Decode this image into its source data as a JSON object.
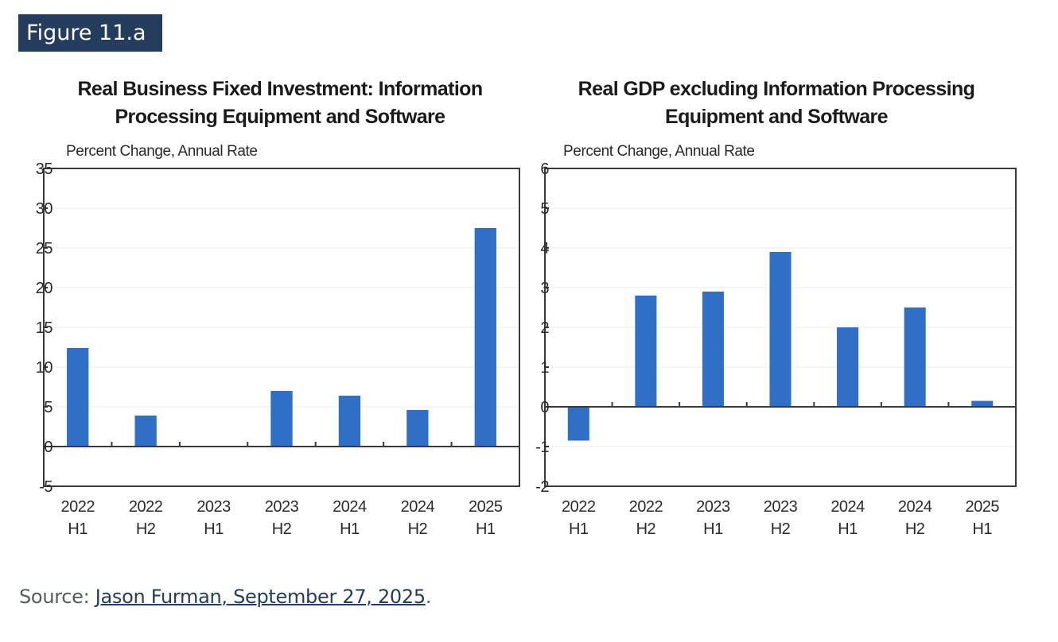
{
  "figure_label": "Figure 11.a",
  "source": {
    "prefix": "Source: ",
    "link_text": "Jason Furman, September 27, 2025",
    "suffix": "."
  },
  "colors": {
    "bar": "#2f6fc6",
    "badge": "#253d5c",
    "link": "#253d5c"
  },
  "chart_data": [
    {
      "type": "bar",
      "title_lines": [
        "Real Business Fixed Investment: Information",
        "Processing Equipment and Software"
      ],
      "ylabel": "Percent Change, Annual Rate",
      "xlabel": "",
      "categories": [
        [
          "2022",
          "H1"
        ],
        [
          "2022",
          "H2"
        ],
        [
          "2023",
          "H1"
        ],
        [
          "2023",
          "H2"
        ],
        [
          "2024",
          "H1"
        ],
        [
          "2024",
          "H2"
        ],
        [
          "2025",
          "H1"
        ]
      ],
      "values": [
        12.4,
        3.9,
        0.1,
        7.0,
        6.4,
        4.6,
        27.5
      ],
      "ylim": [
        -5,
        35
      ],
      "yticks": [
        35,
        30,
        25,
        20,
        15,
        10,
        5,
        0,
        -5
      ],
      "grid": true,
      "legend": "none"
    },
    {
      "type": "bar",
      "title_lines": [
        "Real GDP excluding Information Processing",
        "Equipment and Software"
      ],
      "ylabel": "Percent Change, Annual Rate",
      "xlabel": "",
      "categories": [
        [
          "2022",
          "H1"
        ],
        [
          "2022",
          "H2"
        ],
        [
          "2023",
          "H1"
        ],
        [
          "2023",
          "H2"
        ],
        [
          "2024",
          "H1"
        ],
        [
          "2024",
          "H2"
        ],
        [
          "2025",
          "H1"
        ]
      ],
      "values": [
        -0.85,
        2.8,
        2.9,
        3.9,
        2.0,
        2.5,
        0.15
      ],
      "ylim": [
        -2,
        6
      ],
      "yticks": [
        6,
        5,
        4,
        3,
        2,
        1,
        0,
        -1,
        -2
      ],
      "grid": true,
      "legend": "none"
    }
  ]
}
